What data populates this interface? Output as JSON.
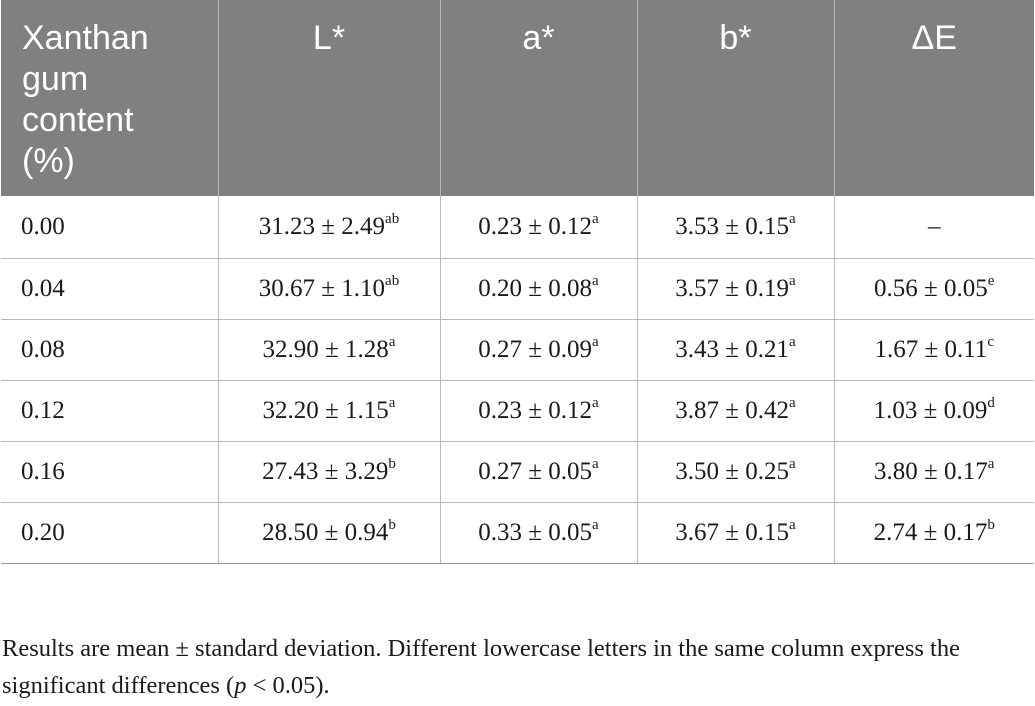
{
  "table": {
    "headers": [
      "Xanthan gum content (%)",
      "L*",
      "a*",
      "b*",
      "ΔE"
    ],
    "header_first_lines": [
      "Xanthan",
      "gum",
      "content",
      "(%)"
    ],
    "rows": [
      {
        "content": "0.00",
        "L": "31.23 ± 2.49",
        "L_sup": "ab",
        "a": "0.23 ± 0.12",
        "a_sup": "a",
        "b": "3.53 ± 0.15",
        "b_sup": "a",
        "dE": "–",
        "dE_sup": ""
      },
      {
        "content": "0.04",
        "L": "30.67 ± 1.10",
        "L_sup": "ab",
        "a": "0.20 ± 0.08",
        "a_sup": "a",
        "b": "3.57 ± 0.19",
        "b_sup": "a",
        "dE": "0.56 ± 0.05",
        "dE_sup": "e"
      },
      {
        "content": "0.08",
        "L": "32.90 ± 1.28",
        "L_sup": "a",
        "a": "0.27 ± 0.09",
        "a_sup": "a",
        "b": "3.43 ± 0.21",
        "b_sup": "a",
        "dE": "1.67 ± 0.11",
        "dE_sup": "c"
      },
      {
        "content": "0.12",
        "L": "32.20 ± 1.15",
        "L_sup": "a",
        "a": "0.23 ± 0.12",
        "a_sup": "a",
        "b": "3.87 ± 0.42",
        "b_sup": "a",
        "dE": "1.03 ± 0.09",
        "dE_sup": "d"
      },
      {
        "content": "0.16",
        "L": "27.43 ± 3.29",
        "L_sup": "b",
        "a": "0.27 ± 0.05",
        "a_sup": "a",
        "b": "3.50 ± 0.25",
        "b_sup": "a",
        "dE": "3.80 ± 0.17",
        "dE_sup": "a"
      },
      {
        "content": "0.20",
        "L": "28.50 ± 0.94",
        "L_sup": "b",
        "a": "0.33 ± 0.05",
        "a_sup": "a",
        "b": "3.67 ± 0.15",
        "b_sup": "a",
        "dE": "2.74 ± 0.17",
        "dE_sup": "b"
      }
    ]
  },
  "footnote": {
    "part1": "Results are mean ± standard deviation. Different lowercase letters in the same column express the significant differences (",
    "p": "p",
    "part2": " < 0.05)."
  },
  "colors": {
    "header_bg": "#808080",
    "header_text": "#ffffff",
    "grid": "#b9b9b9"
  }
}
